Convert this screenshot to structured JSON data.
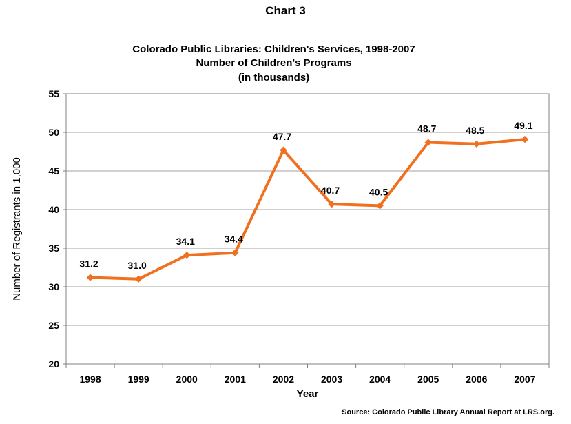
{
  "chart_data": {
    "type": "line",
    "chart_number": "Chart 3",
    "title": "Colorado Public Libraries: Children's Services, 1998-2007",
    "subtitle": "Number of Children's Programs",
    "subtitle2": "(in thousands)",
    "xlabel": "Year",
    "ylabel": "Number of Registrants in 1,000",
    "categories": [
      "1998",
      "1999",
      "2000",
      "2001",
      "2002",
      "2003",
      "2004",
      "2005",
      "2006",
      "2007"
    ],
    "values": [
      31.2,
      31.0,
      34.1,
      34.4,
      47.7,
      40.7,
      40.5,
      48.7,
      48.5,
      49.1
    ],
    "data_labels": [
      "31.2",
      "31.0",
      "34.1",
      "34.4",
      "47.7",
      "40.7",
      "40.5",
      "48.7",
      "48.5",
      "49.1"
    ],
    "ylim": [
      20,
      55
    ],
    "yticks": [
      "20",
      "25",
      "30",
      "35",
      "40",
      "45",
      "50",
      "55"
    ],
    "grid": true,
    "line_color": "#F07020",
    "grid_color": "#A0A0A0",
    "source": "Source: Colorado Public Library Annual Report at LRS.org."
  }
}
